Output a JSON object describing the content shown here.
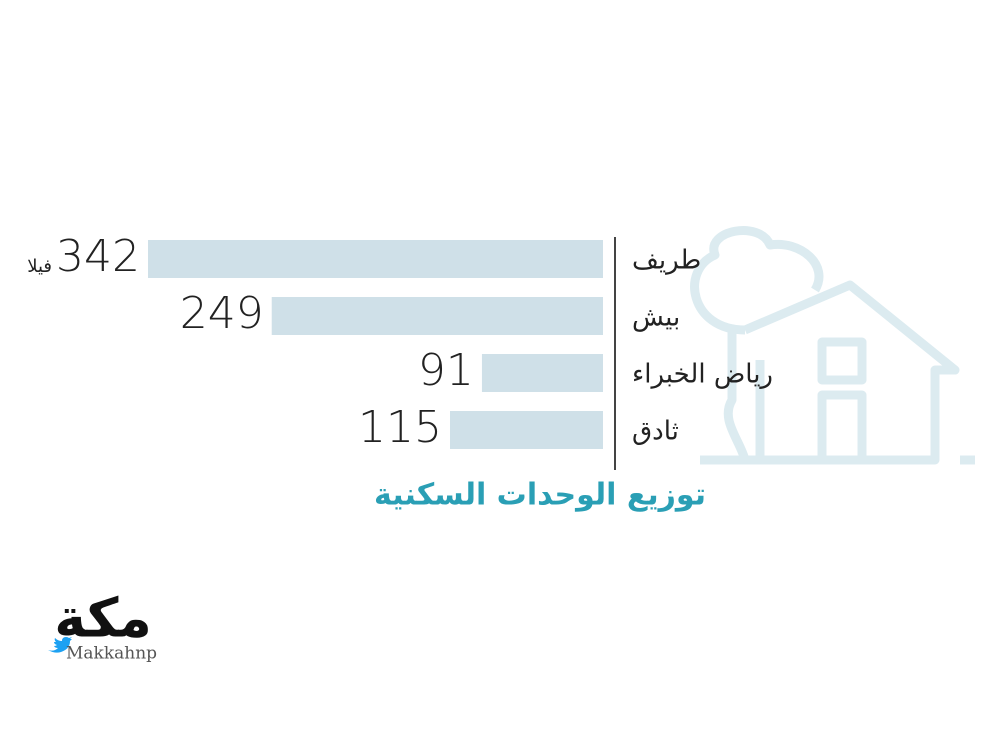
{
  "chart_data": {
    "type": "bar",
    "orientation": "horizontal",
    "title": "توزيع الوحدات السكنية",
    "categories": [
      "طريف",
      "بيش",
      "رياض الخبراء",
      "ثادق"
    ],
    "values": [
      342,
      249,
      91,
      115
    ],
    "unit": "فيلا",
    "color": "#cfe0e8"
  },
  "logo": {
    "name": "مكة",
    "handle": "Makkahnp"
  }
}
